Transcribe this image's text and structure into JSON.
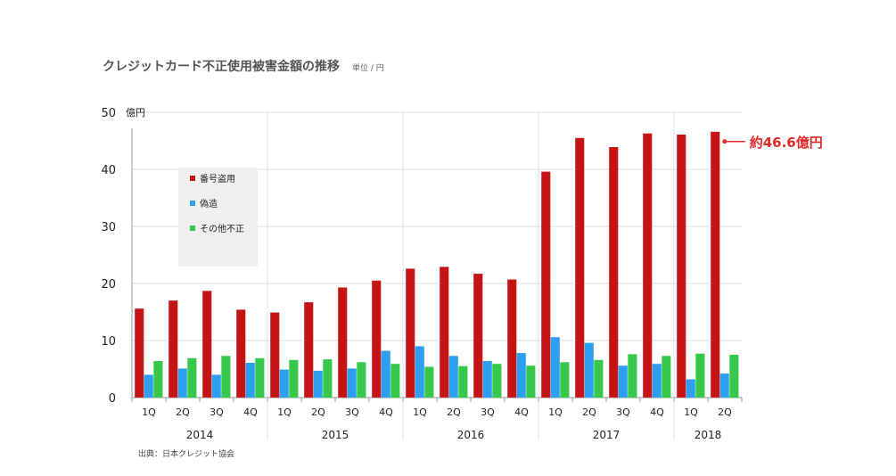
{
  "header": {
    "title": "クレジットカード不正使用被害金額の推移",
    "unit": "単位 / 円"
  },
  "footer": {
    "source": "出典：日本クレジット協会"
  },
  "colors": {
    "series": [
      "#c51416",
      "#2c9ff0",
      "#36c84a"
    ],
    "callout": "#e02a2a"
  },
  "chart_data": {
    "type": "bar",
    "categories": [
      "1Q",
      "2Q",
      "3Q",
      "4Q",
      "1Q",
      "2Q",
      "3Q",
      "4Q",
      "1Q",
      "2Q",
      "3Q",
      "4Q",
      "1Q",
      "2Q",
      "3Q",
      "4Q",
      "1Q",
      "2Q"
    ],
    "groups": [
      {
        "label": "2014",
        "count": 4
      },
      {
        "label": "2015",
        "count": 4
      },
      {
        "label": "2016",
        "count": 4
      },
      {
        "label": "2017",
        "count": 4
      },
      {
        "label": "2018",
        "count": 2
      }
    ],
    "series": [
      {
        "name": "番号盗用",
        "values": [
          15.6,
          17.0,
          18.7,
          15.4,
          14.9,
          16.7,
          19.3,
          20.5,
          22.6,
          22.9,
          21.7,
          20.7,
          39.6,
          45.5,
          43.9,
          46.3,
          46.1,
          46.6
        ]
      },
      {
        "name": "偽造",
        "values": [
          4.0,
          5.1,
          4.0,
          6.1,
          4.9,
          4.7,
          5.1,
          8.2,
          9.0,
          7.3,
          6.4,
          7.8,
          10.6,
          9.6,
          5.6,
          5.9,
          3.2,
          4.2
        ]
      },
      {
        "name": "その他不正",
        "values": [
          6.4,
          6.9,
          7.3,
          6.9,
          6.6,
          6.7,
          6.2,
          5.9,
          5.4,
          5.5,
          5.9,
          5.6,
          6.2,
          6.6,
          7.6,
          7.3,
          7.7,
          7.5
        ]
      }
    ],
    "ylabel": "億円",
    "ylim": [
      0,
      50
    ],
    "yticks": [
      0,
      10,
      20,
      30,
      40,
      50
    ],
    "grid": true,
    "legend": "top-left",
    "annotation": {
      "text": "約46.6億円",
      "value": 46.6
    }
  }
}
